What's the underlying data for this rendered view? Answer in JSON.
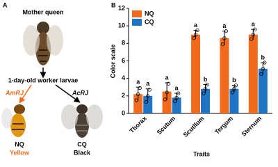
{
  "panel_a": {
    "label": "A",
    "mother": "Mother queen",
    "larvae": "1-day-old worker larvae",
    "left_gene": "AmRJ",
    "right_gene": "AcRJ",
    "left_name": "NQ",
    "left_color": "Yellow",
    "right_name": "CQ",
    "right_color": "Black"
  },
  "chart_data": {
    "type": "bar",
    "panel_label": "B",
    "ylabel": "Color scale",
    "xlabel": "Traits",
    "categories": [
      "Thorax",
      "Scutum",
      "Scutllum",
      "Tergum",
      "Sternum"
    ],
    "series": [
      {
        "name": "NQ",
        "color": "#f26b1d",
        "values": [
          2.2,
          2.5,
          9.0,
          8.6,
          9.0
        ],
        "errors": [
          0.8,
          1.0,
          0.5,
          0.8,
          0.6
        ],
        "letters": [
          "a",
          "a",
          "a",
          "a",
          "a"
        ],
        "points": [
          [
            1.5,
            2.2,
            2.9
          ],
          [
            1.6,
            2.4,
            3.4
          ],
          [
            8.6,
            9.0,
            9.5
          ],
          [
            7.9,
            8.6,
            9.4
          ],
          [
            8.5,
            9.0,
            9.6
          ]
        ]
      },
      {
        "name": "CQ",
        "color": "#1f74c4",
        "values": [
          2.0,
          1.8,
          2.8,
          2.8,
          5.1
        ],
        "errors": [
          0.8,
          0.5,
          0.5,
          0.4,
          0.7
        ],
        "letters": [
          "a",
          "a",
          "b",
          "b",
          "b"
        ],
        "points": [
          [
            1.3,
            2.0,
            2.7
          ],
          [
            1.4,
            1.8,
            2.3
          ],
          [
            2.3,
            2.8,
            3.3
          ],
          [
            2.4,
            2.8,
            3.2
          ],
          [
            4.5,
            5.1,
            5.8
          ]
        ]
      }
    ],
    "ylim": [
      0,
      12
    ],
    "yticks": [
      0,
      2,
      4,
      6,
      8,
      10,
      12
    ],
    "legend": "upper left"
  }
}
